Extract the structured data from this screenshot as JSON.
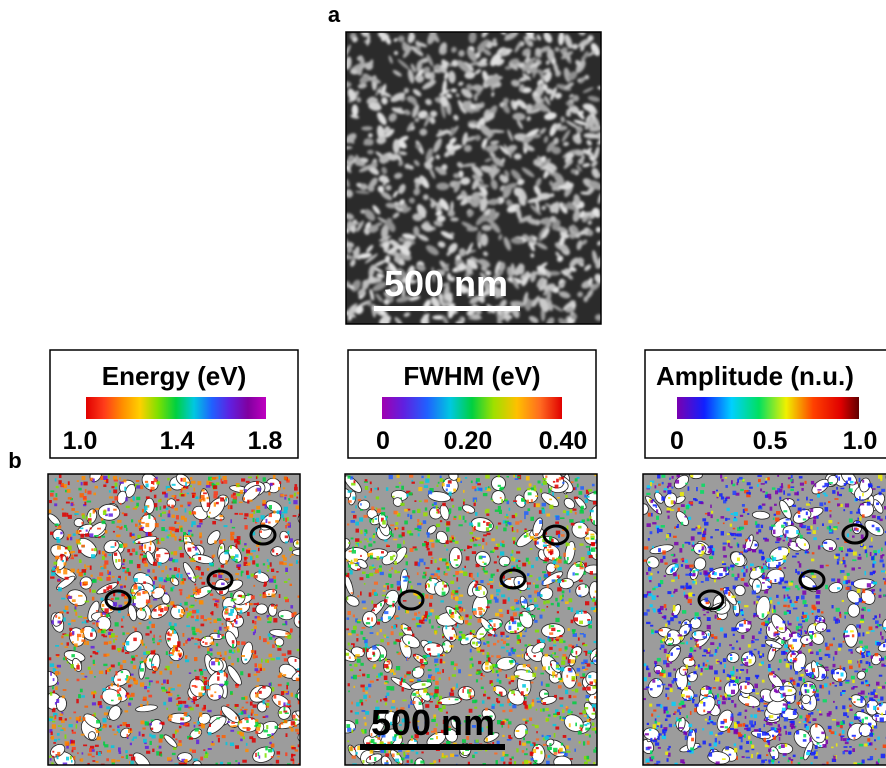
{
  "panel_a": {
    "label": "a",
    "scale_bar": "500 nm"
  },
  "panel_b": {
    "label": "b",
    "colorbars": [
      {
        "title": "Energy (eV)",
        "ticks": [
          "1.0",
          "1.4",
          "1.8"
        ]
      },
      {
        "title": "FWHM (eV)",
        "ticks": [
          "0",
          "0.20",
          "0.40"
        ]
      },
      {
        "title": "Amplitude (n.u.)",
        "ticks": [
          "0",
          "0.5",
          "1.0"
        ]
      }
    ],
    "scale_bar": "500 nm"
  }
}
